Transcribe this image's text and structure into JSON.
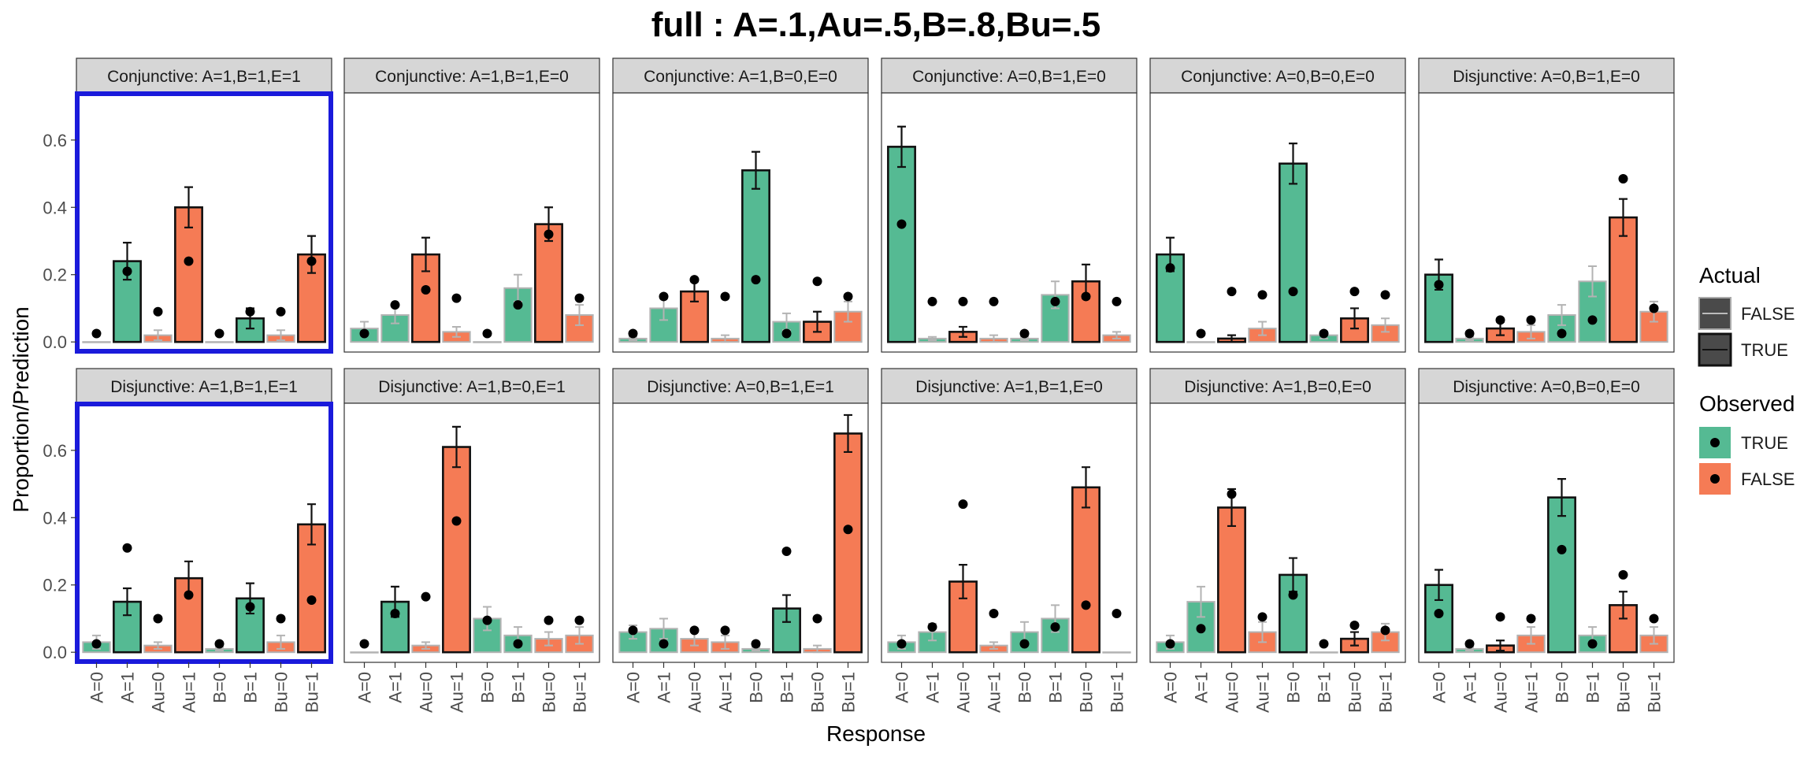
{
  "title": "full : A=.1,Au=.5,B=.8,Bu=.5",
  "chart_data": {
    "type": "bar",
    "title": "full : A=.1,Au=.5,B=.8,Bu=.5",
    "xlabel": "Response",
    "ylabel": "Proportion/Prediction",
    "ylim": [
      -0.03,
      0.74
    ],
    "y_ticks": [
      "0.0",
      "0.2",
      "0.4",
      "0.6"
    ],
    "categories": [
      "A=0",
      "A=1",
      "Au=0",
      "Au=1",
      "B=0",
      "B=1",
      "Bu=0",
      "Bu=1"
    ],
    "observed_by_category": [
      "TRUE",
      "TRUE",
      "FALSE",
      "FALSE",
      "TRUE",
      "TRUE",
      "FALSE",
      "FALSE"
    ],
    "grid": false,
    "colors": {
      "observed_true": "#55BA93",
      "observed_false": "#F57B55",
      "actual_true_outline": "#111111",
      "actual_false_outline": "#B3B3B3",
      "strip": "#D6D6D6",
      "highlight": "#1A1ADB",
      "point": "#000000"
    },
    "legend": {
      "placement": "right",
      "actual": {
        "title": "Actual",
        "items": [
          "FALSE",
          "TRUE"
        ]
      },
      "observed": {
        "title": "Observed",
        "items": [
          "TRUE",
          "FALSE"
        ]
      }
    },
    "panels": [
      {
        "title": "Conjunctive: A=1,B=1,E=1",
        "highlighted": true,
        "actual": [
          false,
          true,
          false,
          true,
          false,
          true,
          false,
          true
        ],
        "values": [
          0.0,
          0.24,
          0.02,
          0.4,
          0.0,
          0.07,
          0.02,
          0.26
        ],
        "errors": [
          0.0,
          0.055,
          0.015,
          0.06,
          0.0,
          0.03,
          0.015,
          0.055
        ],
        "points": [
          0.025,
          0.21,
          0.09,
          0.24,
          0.025,
          0.09,
          0.09,
          0.24
        ]
      },
      {
        "title": "Conjunctive: A=1,B=1,E=0",
        "highlighted": false,
        "actual": [
          false,
          false,
          true,
          false,
          false,
          false,
          true,
          false
        ],
        "values": [
          0.04,
          0.08,
          0.26,
          0.03,
          0.0,
          0.16,
          0.35,
          0.08
        ],
        "errors": [
          0.02,
          0.025,
          0.05,
          0.015,
          0.0,
          0.04,
          0.05,
          0.03
        ],
        "points": [
          0.025,
          0.11,
          0.155,
          0.13,
          0.025,
          0.11,
          0.32,
          0.13
        ]
      },
      {
        "title": "Conjunctive: A=1,B=0,E=0",
        "highlighted": false,
        "actual": [
          false,
          false,
          true,
          false,
          true,
          false,
          true,
          false
        ],
        "values": [
          0.01,
          0.1,
          0.15,
          0.01,
          0.51,
          0.06,
          0.06,
          0.09
        ],
        "errors": [
          0.005,
          0.035,
          0.03,
          0.01,
          0.055,
          0.025,
          0.03,
          0.03
        ],
        "points": [
          0.025,
          0.135,
          0.185,
          0.135,
          0.185,
          0.025,
          0.18,
          0.135
        ]
      },
      {
        "title": "Conjunctive: A=0,B=1,E=0",
        "highlighted": false,
        "actual": [
          true,
          false,
          true,
          false,
          false,
          false,
          true,
          false
        ],
        "values": [
          0.58,
          0.01,
          0.03,
          0.01,
          0.01,
          0.14,
          0.18,
          0.02
        ],
        "errors": [
          0.06,
          0.005,
          0.015,
          0.01,
          0.005,
          0.04,
          0.05,
          0.01
        ],
        "points": [
          0.35,
          0.12,
          0.12,
          0.12,
          0.025,
          0.12,
          0.135,
          0.12
        ]
      },
      {
        "title": "Conjunctive: A=0,B=0,E=0",
        "highlighted": false,
        "actual": [
          true,
          false,
          true,
          false,
          true,
          false,
          true,
          false
        ],
        "values": [
          0.26,
          0.0,
          0.01,
          0.04,
          0.53,
          0.02,
          0.07,
          0.05
        ],
        "errors": [
          0.05,
          0.0,
          0.01,
          0.02,
          0.06,
          0.01,
          0.03,
          0.02
        ],
        "points": [
          0.22,
          0.025,
          0.15,
          0.14,
          0.15,
          0.025,
          0.15,
          0.14
        ]
      },
      {
        "title": "Disjunctive: A=0,B=1,E=0",
        "highlighted": false,
        "actual": [
          true,
          false,
          true,
          false,
          false,
          false,
          true,
          false
        ],
        "values": [
          0.2,
          0.01,
          0.04,
          0.03,
          0.08,
          0.18,
          0.37,
          0.09
        ],
        "errors": [
          0.045,
          0.005,
          0.02,
          0.02,
          0.03,
          0.045,
          0.055,
          0.03
        ],
        "points": [
          0.17,
          0.025,
          0.065,
          0.065,
          0.025,
          0.065,
          0.485,
          0.1
        ]
      },
      {
        "title": "Disjunctive: A=1,B=1,E=1",
        "highlighted": true,
        "actual": [
          false,
          true,
          false,
          true,
          false,
          true,
          false,
          true
        ],
        "values": [
          0.03,
          0.15,
          0.02,
          0.22,
          0.01,
          0.16,
          0.03,
          0.38
        ],
        "errors": [
          0.02,
          0.04,
          0.01,
          0.05,
          0.005,
          0.045,
          0.02,
          0.06
        ],
        "points": [
          0.025,
          0.31,
          0.1,
          0.17,
          0.025,
          0.135,
          0.1,
          0.155
        ]
      },
      {
        "title": "Disjunctive: A=1,B=0,E=1",
        "highlighted": false,
        "actual": [
          false,
          true,
          false,
          true,
          false,
          false,
          false,
          false
        ],
        "values": [
          0.0,
          0.15,
          0.02,
          0.61,
          0.1,
          0.05,
          0.04,
          0.05
        ],
        "errors": [
          0.0,
          0.045,
          0.01,
          0.06,
          0.035,
          0.025,
          0.02,
          0.025
        ],
        "points": [
          0.025,
          0.115,
          0.165,
          0.39,
          0.095,
          0.025,
          0.095,
          0.095
        ]
      },
      {
        "title": "Disjunctive: A=0,B=1,E=1",
        "highlighted": false,
        "actual": [
          false,
          false,
          false,
          false,
          false,
          true,
          false,
          true
        ],
        "values": [
          0.06,
          0.07,
          0.04,
          0.03,
          0.01,
          0.13,
          0.01,
          0.65
        ],
        "errors": [
          0.02,
          0.03,
          0.02,
          0.02,
          0.005,
          0.04,
          0.01,
          0.055
        ],
        "points": [
          0.065,
          0.025,
          0.065,
          0.065,
          0.025,
          0.3,
          0.1,
          0.365
        ]
      },
      {
        "title": "Disjunctive: A=1,B=1,E=0",
        "highlighted": false,
        "actual": [
          false,
          false,
          true,
          false,
          false,
          false,
          true,
          false
        ],
        "values": [
          0.03,
          0.06,
          0.21,
          0.02,
          0.06,
          0.1,
          0.49,
          0.0
        ],
        "errors": [
          0.02,
          0.025,
          0.05,
          0.01,
          0.03,
          0.04,
          0.06,
          0.0
        ],
        "points": [
          0.025,
          0.075,
          0.44,
          0.115,
          0.025,
          0.075,
          0.14,
          0.115
        ]
      },
      {
        "title": "Disjunctive: A=1,B=0,E=0",
        "highlighted": false,
        "actual": [
          false,
          false,
          true,
          false,
          true,
          false,
          true,
          false
        ],
        "values": [
          0.03,
          0.15,
          0.43,
          0.06,
          0.23,
          0.0,
          0.04,
          0.06
        ],
        "errors": [
          0.02,
          0.045,
          0.055,
          0.03,
          0.05,
          0.0,
          0.02,
          0.025
        ],
        "points": [
          0.025,
          0.07,
          0.47,
          0.105,
          0.17,
          0.025,
          0.08,
          0.065
        ]
      },
      {
        "title": "Disjunctive: A=0,B=0,E=0",
        "highlighted": false,
        "actual": [
          true,
          false,
          true,
          false,
          true,
          false,
          true,
          false
        ],
        "values": [
          0.2,
          0.01,
          0.02,
          0.05,
          0.46,
          0.05,
          0.14,
          0.05
        ],
        "errors": [
          0.045,
          0.005,
          0.015,
          0.025,
          0.055,
          0.025,
          0.04,
          0.025
        ],
        "points": [
          0.115,
          0.025,
          0.105,
          0.1,
          0.305,
          0.025,
          0.23,
          0.1
        ]
      }
    ]
  }
}
